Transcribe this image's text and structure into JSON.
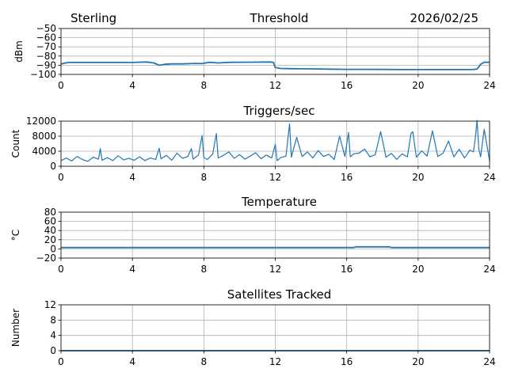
{
  "header": {
    "station": "Sterling",
    "date": "2026/02/25"
  },
  "colors": {
    "series": "#1f77b4",
    "grid": "#b0b0b0",
    "axis": "#000000",
    "background": "#ffffff"
  },
  "chart_data": [
    {
      "type": "line",
      "title": "Threshold",
      "xlabel": "",
      "ylabel": "dBm",
      "xlim": [
        0,
        24
      ],
      "ylim": [
        -100,
        -50
      ],
      "xticks": [
        0,
        4,
        8,
        12,
        16,
        20,
        24
      ],
      "yticks": [
        -50,
        -60,
        -70,
        -80,
        -90,
        -100
      ],
      "ytick_labels": [
        "−50",
        "−60",
        "−70",
        "−80",
        "−90",
        "−100"
      ],
      "grid": true,
      "series": [
        {
          "name": "Threshold",
          "x": [
            0,
            0.4,
            1,
            2,
            3,
            4,
            4.8,
            5.2,
            5.5,
            5.8,
            6.2,
            6.8,
            7.5,
            7.9,
            8.3,
            8.8,
            9.5,
            10.2,
            11,
            11.7,
            11.9,
            12.0,
            12.3,
            13,
            14,
            15,
            16,
            17,
            18,
            19,
            20,
            21,
            22,
            23,
            23.3,
            23.5,
            23.7,
            24
          ],
          "y": [
            -88.5,
            -87,
            -87,
            -87,
            -87,
            -87,
            -86.5,
            -87.5,
            -90,
            -89,
            -88.5,
            -88.5,
            -88,
            -88.2,
            -86.8,
            -87.5,
            -86.8,
            -86.7,
            -86.6,
            -86.5,
            -87,
            -92.5,
            -93.5,
            -93.8,
            -94,
            -94.2,
            -94.5,
            -94.5,
            -94.6,
            -94.7,
            -94.7,
            -94.7,
            -94.7,
            -94.7,
            -94.2,
            -89,
            -86.8,
            -86.7
          ]
        }
      ]
    },
    {
      "type": "line",
      "title": "Triggers/sec",
      "xlabel": "",
      "ylabel": "Count",
      "xlim": [
        0,
        24
      ],
      "ylim": [
        0,
        12000
      ],
      "xticks": [
        0,
        4,
        8,
        12,
        16,
        20,
        24
      ],
      "yticks": [
        0,
        4000,
        8000,
        12000
      ],
      "ytick_labels": [
        "0",
        "4000",
        "8000",
        "12000"
      ],
      "grid": true,
      "series": [
        {
          "name": "Triggers/sec",
          "x": [
            0,
            0.3,
            0.6,
            0.9,
            1.2,
            1.5,
            1.8,
            2.1,
            2.2,
            2.3,
            2.6,
            2.9,
            3.2,
            3.5,
            3.8,
            4.1,
            4.4,
            4.7,
            5.0,
            5.3,
            5.5,
            5.6,
            5.9,
            6.2,
            6.5,
            6.8,
            7.1,
            7.3,
            7.4,
            7.7,
            7.9,
            8.0,
            8.2,
            8.5,
            8.7,
            8.8,
            9.1,
            9.4,
            9.7,
            10.0,
            10.3,
            10.6,
            10.9,
            11.2,
            11.5,
            11.8,
            12.0,
            12.1,
            12.3,
            12.6,
            12.8,
            12.9,
            13.2,
            13.5,
            13.8,
            14.1,
            14.4,
            14.7,
            15.0,
            15.3,
            15.6,
            15.9,
            16.1,
            16.2,
            16.4,
            16.7,
            17.0,
            17.3,
            17.6,
            17.9,
            18.2,
            18.5,
            18.8,
            19.1,
            19.4,
            19.6,
            19.7,
            19.9,
            20.2,
            20.5,
            20.8,
            21.1,
            21.4,
            21.7,
            22.0,
            22.3,
            22.6,
            22.9,
            23.1,
            23.2,
            23.3,
            23.4,
            23.5,
            23.7,
            24
          ],
          "y": [
            1500,
            2200,
            1400,
            2600,
            1800,
            1300,
            2400,
            1900,
            4700,
            1600,
            2300,
            1500,
            2800,
            1700,
            2100,
            1600,
            2500,
            1500,
            2200,
            1800,
            4800,
            2000,
            2900,
            1600,
            3500,
            2100,
            2600,
            4700,
            1900,
            3000,
            8200,
            2300,
            1800,
            3300,
            8700,
            2200,
            2900,
            3800,
            2100,
            3100,
            1900,
            2700,
            3600,
            2000,
            3000,
            2200,
            5800,
            1500,
            2300,
            2700,
            11300,
            2400,
            7700,
            2600,
            3800,
            2200,
            4200,
            2600,
            3200,
            1800,
            8000,
            2600,
            9000,
            2500,
            3300,
            3500,
            4600,
            2500,
            3100,
            9200,
            2400,
            3400,
            1800,
            3300,
            2500,
            8700,
            9200,
            2400,
            4100,
            2700,
            9400,
            2600,
            3500,
            6700,
            2500,
            4500,
            2200,
            4300,
            3800,
            7500,
            12200,
            4500,
            2500,
            9800,
            1500
          ]
        }
      ]
    },
    {
      "type": "line",
      "title": "Temperature",
      "xlabel": "",
      "ylabel": "°C",
      "xlim": [
        0,
        24
      ],
      "ylim": [
        -20,
        80
      ],
      "xticks": [
        0,
        4,
        8,
        12,
        16,
        20,
        24
      ],
      "yticks": [
        -20,
        0,
        20,
        40,
        60,
        80
      ],
      "ytick_labels": [
        "−20",
        "0",
        "20",
        "40",
        "60",
        "80"
      ],
      "grid": true,
      "series": [
        {
          "name": "Temperature",
          "x": [
            0,
            16.4,
            16.5,
            18.4,
            18.5,
            24
          ],
          "y": [
            3,
            3,
            4.5,
            4.5,
            3,
            3
          ]
        }
      ]
    },
    {
      "type": "line",
      "title": "Satellites Tracked",
      "xlabel": "",
      "ylabel": "Number",
      "xlim": [
        0,
        24
      ],
      "ylim": [
        0,
        12
      ],
      "xticks": [
        0,
        4,
        8,
        12,
        16,
        20,
        24
      ],
      "yticks": [
        0,
        4,
        8,
        12
      ],
      "ytick_labels": [
        "0",
        "4",
        "8",
        "12"
      ],
      "grid": true,
      "series": [
        {
          "name": "Satellites Tracked",
          "x": [
            0,
            24
          ],
          "y": [
            0,
            0
          ]
        }
      ]
    }
  ]
}
